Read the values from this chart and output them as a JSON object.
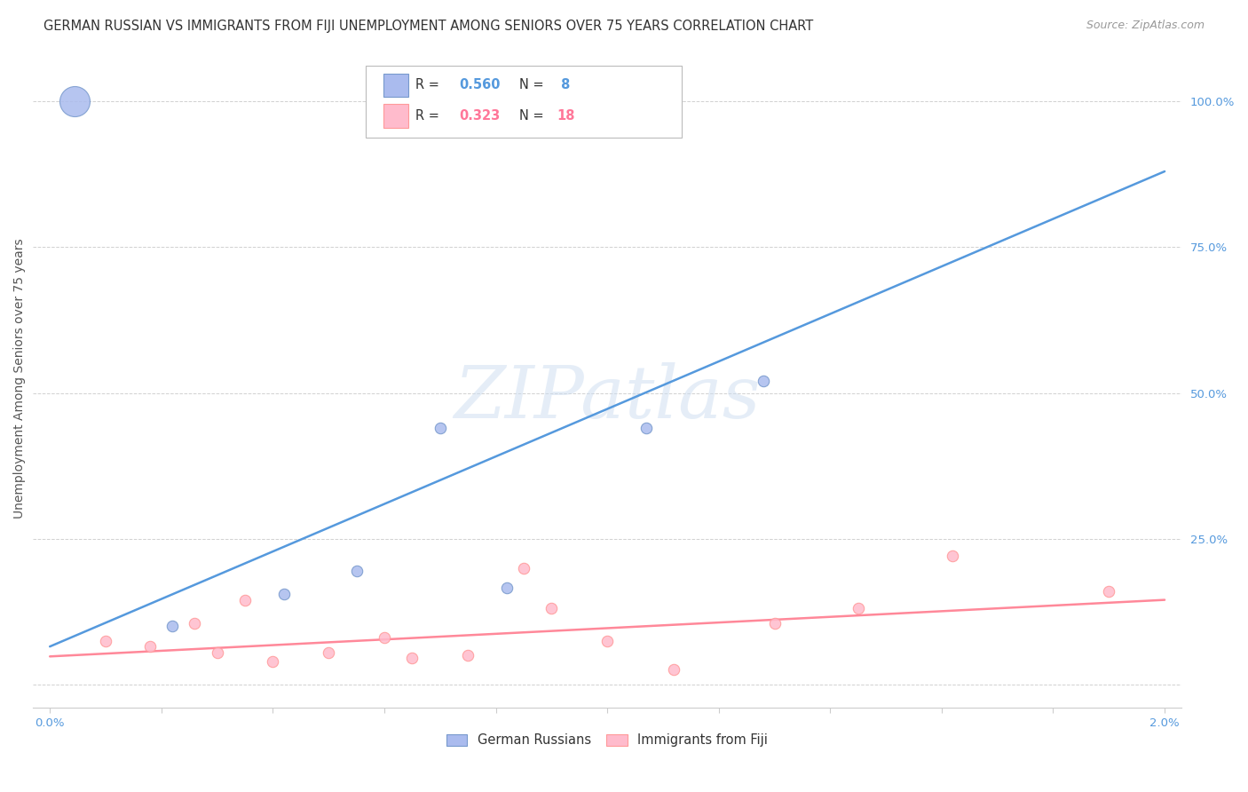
{
  "title": "GERMAN RUSSIAN VS IMMIGRANTS FROM FIJI UNEMPLOYMENT AMONG SENIORS OVER 75 YEARS CORRELATION CHART",
  "source": "Source: ZipAtlas.com",
  "ylabel": "Unemployment Among Seniors over 75 years",
  "y_ticks": [
    0.0,
    0.25,
    0.5,
    0.75,
    1.0
  ],
  "y_tick_labels": [
    "",
    "25.0%",
    "50.0%",
    "75.0%",
    "100.0%"
  ],
  "german_russians": {
    "label": "German Russians",
    "face_color": "#AABBEE",
    "edge_color": "#7799CC",
    "R": 0.56,
    "N": 8,
    "x": [
      0.00045,
      0.0022,
      0.0042,
      0.0055,
      0.007,
      0.0082,
      0.0107,
      0.0128
    ],
    "y": [
      1.0,
      0.1,
      0.155,
      0.195,
      0.44,
      0.165,
      0.44,
      0.52
    ],
    "size": [
      600,
      80,
      80,
      80,
      80,
      80,
      80,
      80
    ]
  },
  "fiji_immigrants": {
    "label": "Immigrants from Fiji",
    "face_color": "#FFBBCC",
    "edge_color": "#FF9999",
    "R": 0.323,
    "N": 18,
    "x": [
      0.001,
      0.0018,
      0.0026,
      0.003,
      0.0035,
      0.004,
      0.005,
      0.006,
      0.0065,
      0.0075,
      0.0085,
      0.009,
      0.01,
      0.0112,
      0.013,
      0.0145,
      0.0162,
      0.019
    ],
    "y": [
      0.075,
      0.065,
      0.105,
      0.055,
      0.145,
      0.04,
      0.055,
      0.08,
      0.045,
      0.05,
      0.2,
      0.13,
      0.075,
      0.025,
      0.105,
      0.13,
      0.22,
      0.16
    ],
    "size": [
      80,
      80,
      80,
      80,
      80,
      80,
      80,
      80,
      80,
      80,
      80,
      80,
      80,
      80,
      80,
      80,
      80,
      80
    ]
  },
  "blue_line_x": [
    0.0,
    0.02
  ],
  "blue_line_y": [
    0.065,
    0.88
  ],
  "pink_line_x": [
    0.0,
    0.02
  ],
  "pink_line_y": [
    0.048,
    0.145
  ],
  "blue_line_color": "#5599DD",
  "pink_line_color": "#FF8899",
  "watermark": "ZIPatlas",
  "background_color": "#FFFFFF",
  "grid_color": "#CCCCCC",
  "axis_tick_color": "#5599DD",
  "legend_r_blue": "0.560",
  "legend_n_blue": " 8",
  "legend_r_pink": "0.323",
  "legend_n_pink": "18",
  "xlim": [
    -0.0003,
    0.0203
  ],
  "ylim": [
    -0.04,
    1.09
  ]
}
